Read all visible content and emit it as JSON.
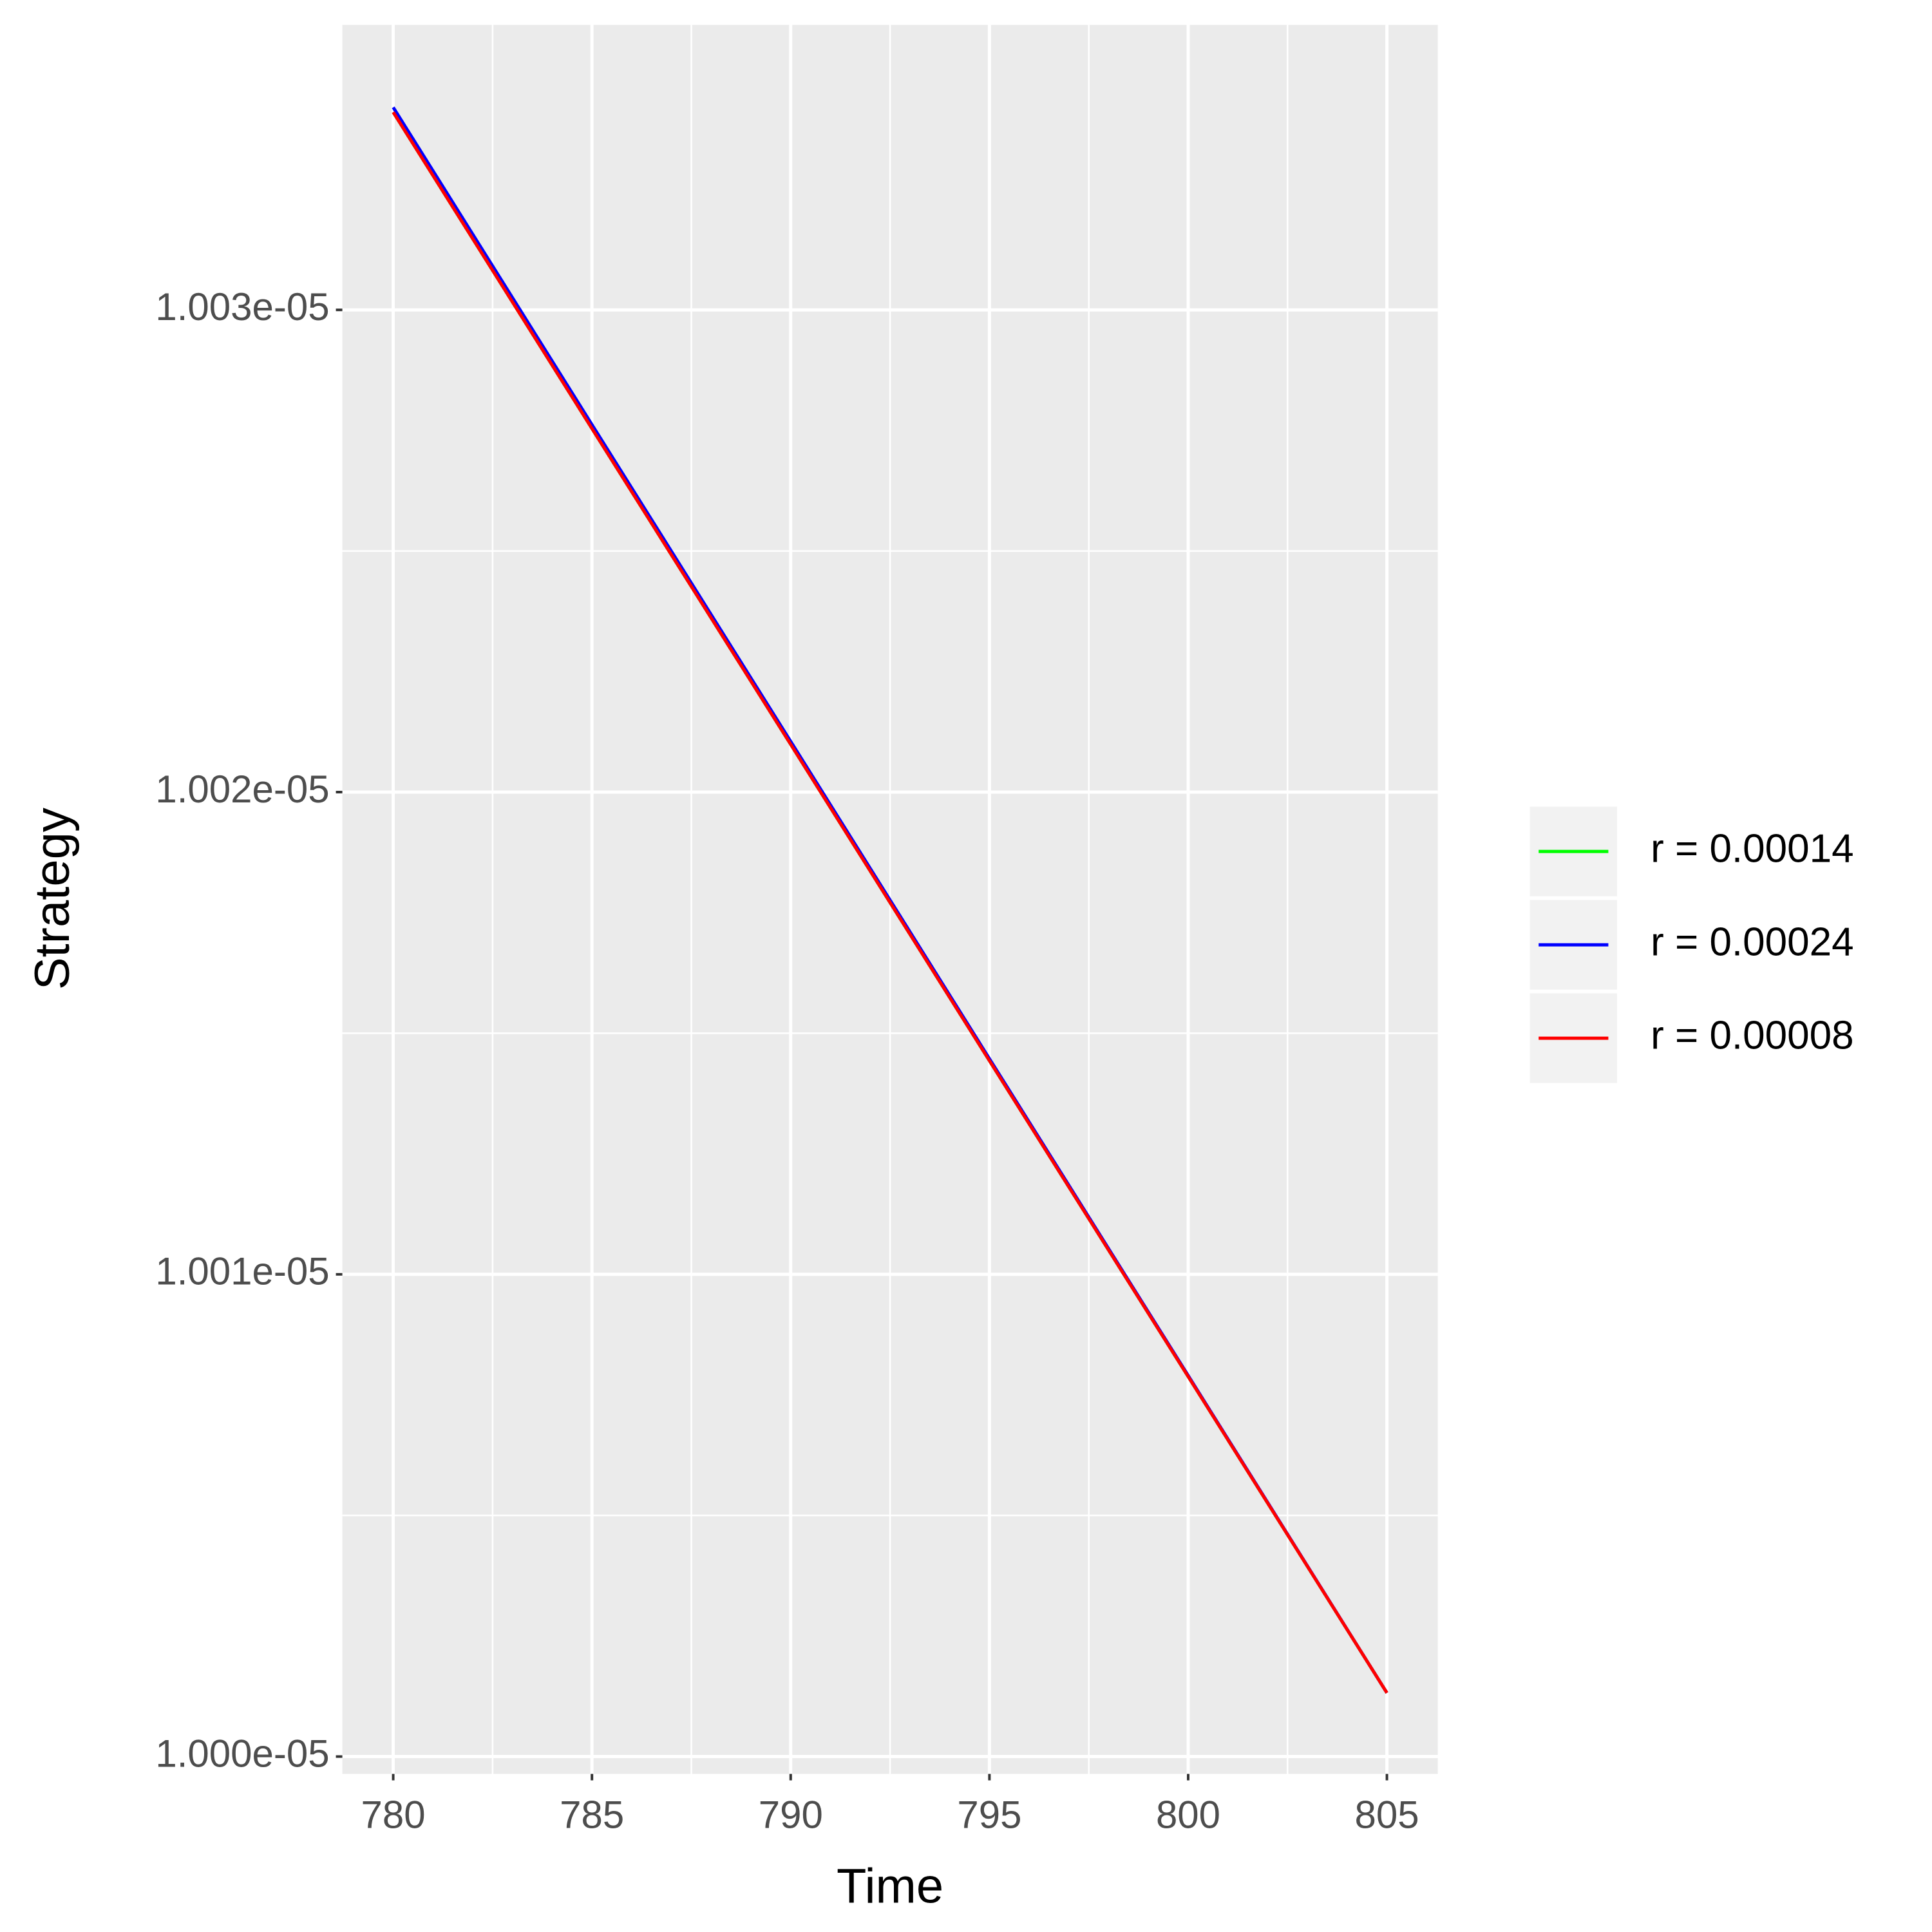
{
  "chart_data": {
    "type": "line",
    "x_label": "Time",
    "y_label": "Strategy",
    "x": [
      780,
      785,
      790,
      795,
      800,
      805
    ],
    "series": [
      {
        "name": "r = 0.00014",
        "color": "#00ff00",
        "values": [
          1.00341e-05,
          1.002754e-05,
          1.002099e-05,
          1.001443e-05,
          1.000788e-05,
          1.000132e-05
        ]
      },
      {
        "name": "r = 0.00024",
        "color": "#0000ff",
        "values": [
          1.00342e-05,
          1.002762e-05,
          1.002105e-05,
          1.001447e-05,
          1.00079e-05,
          1.000132e-05
        ]
      },
      {
        "name": "r = 0.00008",
        "color": "#ff0000",
        "values": [
          1.00341e-05,
          1.002754e-05,
          1.002099e-05,
          1.001443e-05,
          1.000788e-05,
          1.000132e-05
        ]
      }
    ],
    "xlim": [
      778.72,
      806.28
    ],
    "xticks": [
      780,
      785,
      790,
      795,
      800,
      805
    ],
    "ylim": [
      9.99964e-06,
      1.003591e-05
    ],
    "yticks": [
      {
        "value": 1e-05,
        "label": "1.000e-05"
      },
      {
        "value": 1.001e-05,
        "label": "1.001e-05"
      },
      {
        "value": 1.002e-05,
        "label": "1.002e-05"
      },
      {
        "value": 1.003e-05,
        "label": "1.003e-05"
      }
    ],
    "grid": true,
    "legend": "right"
  }
}
